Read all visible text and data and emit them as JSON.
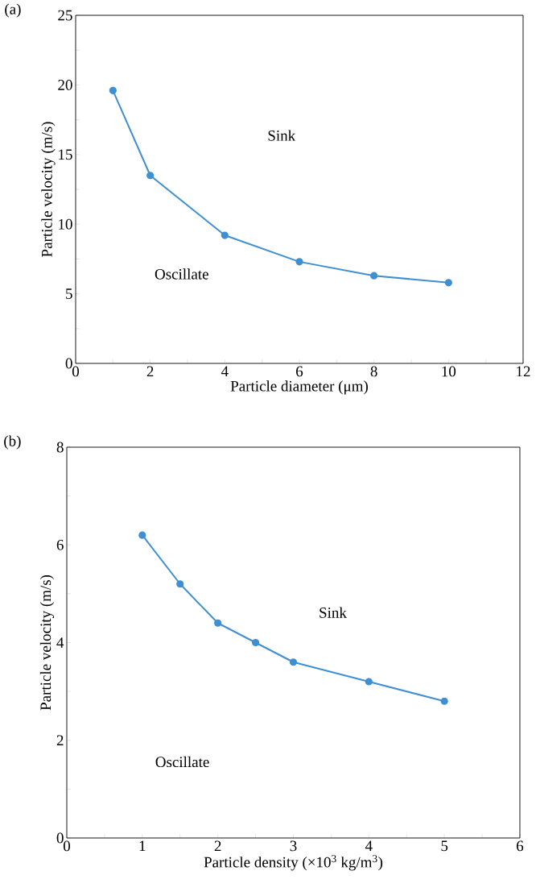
{
  "chart_data": [
    {
      "type": "line",
      "title": "(a)",
      "xlabel": "Particle diameter (μm)",
      "ylabel": "Particle velocity (m/s)",
      "x": [
        1,
        2,
        4,
        6,
        8,
        10
      ],
      "series": [
        {
          "color": "#3f8fd2",
          "values": [
            19.6,
            13.5,
            9.2,
            7.3,
            6.3,
            5.8
          ]
        }
      ],
      "xlim": [
        0,
        12
      ],
      "ylim": [
        0,
        25
      ],
      "xticks": [
        0,
        {
          "value": 1,
          "label": null
        },
        2,
        {
          "value": 3,
          "label": null
        },
        4,
        {
          "value": 5,
          "label": null
        },
        6,
        {
          "value": 7,
          "label": null
        },
        8,
        {
          "value": 9,
          "label": null
        },
        10,
        {
          "value": 11,
          "label": null
        },
        12
      ],
      "yticks": [
        0,
        {
          "value": 2.5,
          "label": null
        },
        5,
        {
          "value": 7.5,
          "label": null
        },
        10,
        {
          "value": 12.5,
          "label": null
        },
        15,
        {
          "value": 17.5,
          "label": null
        },
        20,
        {
          "value": 22.5,
          "label": null
        },
        25
      ],
      "annotations": [
        "Sink",
        "Oscillate"
      ],
      "marker": "circle",
      "line_style": "solid"
    },
    {
      "type": "line",
      "title": "(b)",
      "xlabel": "Particle density (×10$^{3}$ kg/m$^{3}$)",
      "ylabel": "Particle velocity (m/s)",
      "x": [
        1,
        1.5,
        2,
        2.5,
        3,
        4,
        5
      ],
      "series": [
        {
          "color": "#3f8fd2",
          "values": [
            6.2,
            5.2,
            4.4,
            4.0,
            3.6,
            3.2,
            2.8
          ]
        }
      ],
      "xlim": [
        0,
        6
      ],
      "ylim": [
        0,
        8
      ],
      "xticks": [
        0,
        {
          "value": 0.5,
          "label": null
        },
        1,
        {
          "value": 1.5,
          "label": null
        },
        2,
        {
          "value": 2.5,
          "label": null
        },
        3,
        {
          "value": 3.5,
          "label": null
        },
        4,
        {
          "value": 4.5,
          "label": null
        },
        5,
        {
          "value": 5.5,
          "label": null
        },
        6
      ],
      "yticks": [
        0,
        {
          "value": 1,
          "label": null
        },
        2,
        {
          "value": 3,
          "label": null
        },
        4,
        {
          "value": 5,
          "label": null
        },
        6,
        {
          "value": 7,
          "label": null
        },
        8
      ],
      "annotations": [
        "Sink",
        "Oscillate"
      ],
      "marker": "circle",
      "line_style": "solid"
    }
  ]
}
